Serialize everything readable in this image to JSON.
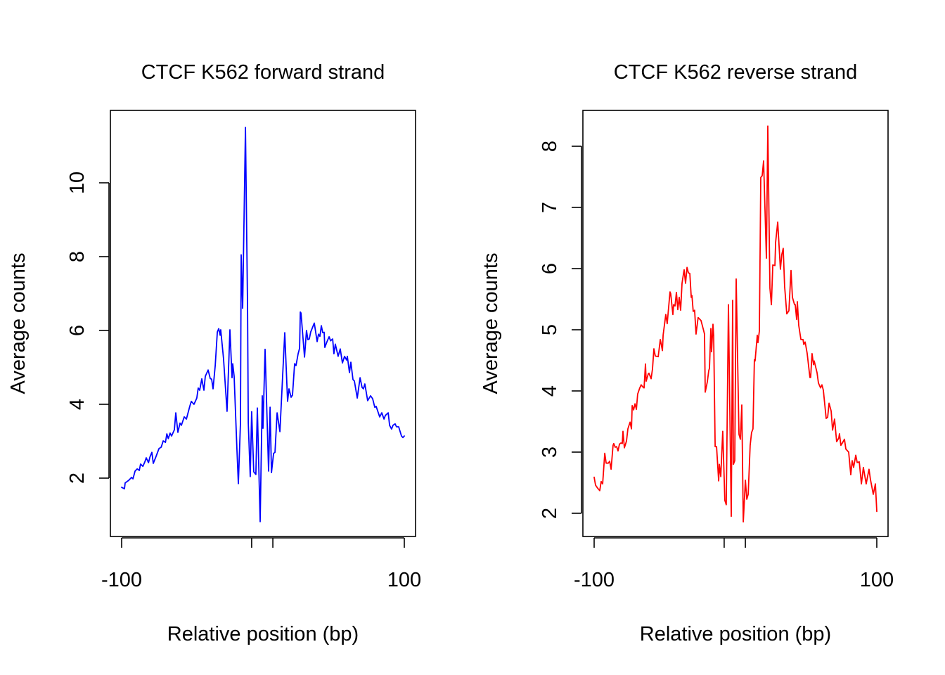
{
  "chart_data": [
    {
      "type": "line",
      "title": "CTCF K562 forward strand",
      "xlabel": "Relative position (bp)",
      "ylabel": "Average counts",
      "xlim": [
        -100,
        100
      ],
      "ylim": [
        0.8,
        11.5
      ],
      "x_ticks": [
        -100,
        -8,
        7,
        100
      ],
      "x_tick_labels": [
        "-100",
        "",
        "",
        "100"
      ],
      "y_ticks": [
        2,
        4,
        6,
        8,
        10
      ],
      "y_tick_labels": [
        "2",
        "4",
        "6",
        "8",
        "10"
      ],
      "grid": false,
      "legend": "none",
      "series": [
        {
          "name": "forward strand",
          "color": "#0000ff",
          "x": [
            -100,
            -98,
            -97.5,
            -95,
            -93,
            -92,
            -90.5,
            -89,
            -87.5,
            -86.6,
            -85,
            -83.6,
            -82.6,
            -81,
            -80,
            -78.6,
            -77.6,
            -75.6,
            -73.6,
            -72,
            -70.6,
            -69,
            -68,
            -67,
            -65.7,
            -64.7,
            -62.7,
            -61.7,
            -60.2,
            -58.7,
            -57.7,
            -55.7,
            -54.2,
            -51.7,
            -50.7,
            -48.8,
            -46.8,
            -45.8,
            -44.8,
            -43.3,
            -41.8,
            -40.8,
            -38.8,
            -37.3,
            -36.3,
            -35.3,
            -33.8,
            -32.3,
            -31.3,
            -30.3,
            -29.9,
            -27.9,
            -25.4,
            -23.4,
            -21.9,
            -21.4,
            -20.4,
            -18.4,
            -17.4,
            -15.9,
            -15.4,
            -14.4,
            -12.4,
            -10.9,
            -10.4,
            -9,
            -8,
            -6.5,
            -5,
            -4,
            -2,
            -0.5,
            0,
            1.5,
            3,
            4,
            5,
            6,
            7.5,
            8.5,
            10,
            12,
            15.4,
            17.4,
            18.4,
            19.9,
            20.9,
            22.4,
            23.4,
            24.9,
            25.9,
            26.4,
            26.9,
            29.4,
            30.8,
            31.8,
            32.8,
            33.8,
            36.3,
            38.3,
            39.3,
            40.3,
            41.3,
            42.3,
            43.3,
            43.8,
            45.3,
            46.8,
            47.8,
            49.3,
            50.2,
            51.2,
            53.2,
            54.7,
            56.2,
            57.7,
            59.2,
            59.7,
            61.2,
            62.2,
            63.7,
            64.7,
            66.7,
            68.7,
            70.1,
            71.1,
            72.1,
            74.1,
            76.1,
            77.6,
            79.1,
            80.1,
            82.6,
            84.1,
            85.6,
            86.6,
            88.6,
            89.6,
            91,
            92,
            93.5,
            94.5,
            96,
            98,
            99,
            100
          ],
          "y": [
            1.75,
            1.71,
            1.87,
            1.94,
            2.02,
            1.98,
            2.19,
            2.25,
            2.21,
            2.38,
            2.32,
            2.44,
            2.55,
            2.42,
            2.57,
            2.7,
            2.4,
            2.59,
            2.8,
            2.84,
            3.01,
            2.97,
            3.2,
            3.07,
            3.22,
            3.14,
            3.31,
            3.77,
            3.24,
            3.49,
            3.43,
            3.66,
            3.6,
            3.96,
            4.08,
            4.0,
            4.17,
            4.44,
            4.38,
            4.69,
            4.38,
            4.76,
            4.93,
            4.7,
            4.68,
            4.42,
            5.05,
            5.96,
            6.05,
            5.87,
            6.02,
            5.24,
            3.81,
            6.02,
            4.72,
            5.1,
            4.76,
            2.76,
            1.85,
            3.5,
            8.05,
            6.6,
            11.5,
            6.57,
            3.5,
            2.04,
            3.8,
            2.17,
            2.1,
            3.9,
            0.82,
            4.23,
            3.35,
            5.49,
            3.5,
            2.19,
            3.92,
            2.15,
            2.67,
            2.7,
            3.77,
            3.26,
            5.94,
            4.08,
            4.42,
            4.19,
            4.25,
            5.1,
            5.05,
            5.37,
            5.52,
            6.5,
            6.47,
            5.28,
            6.0,
            5.75,
            5.77,
            5.96,
            6.2,
            5.7,
            5.9,
            5.84,
            6.13,
            5.94,
            5.95,
            5.54,
            5.7,
            5.83,
            5.72,
            5.77,
            5.37,
            5.63,
            5.3,
            5.5,
            5.12,
            5.3,
            5.2,
            5.3,
            4.86,
            5.14,
            4.67,
            4.63,
            4.17,
            4.72,
            4.46,
            4.42,
            4.55,
            4.1,
            4.23,
            4.15,
            3.92,
            3.94,
            3.66,
            3.77,
            3.6,
            3.7,
            3.77,
            3.43,
            3.33,
            3.43,
            3.47,
            3.39,
            3.39,
            3.14,
            3.1,
            3.14
          ]
        }
      ]
    },
    {
      "type": "line",
      "title": "CTCF K562 reverse strand",
      "xlabel": "Relative position (bp)",
      "ylabel": "Average counts",
      "xlim": [
        -100,
        100
      ],
      "ylim": [
        1.85,
        8.35
      ],
      "x_ticks": [
        -100,
        -8,
        7,
        100
      ],
      "x_tick_labels": [
        "-100",
        "",
        "",
        "100"
      ],
      "y_ticks": [
        2,
        3,
        4,
        5,
        6,
        7,
        8
      ],
      "y_tick_labels": [
        "2",
        "3",
        "4",
        "5",
        "6",
        "7",
        "8"
      ],
      "grid": false,
      "legend": "none",
      "series": [
        {
          "name": "reverse strand",
          "color": "#ff0000",
          "x": [
            -100,
            -99,
            -97.5,
            -96,
            -95,
            -94,
            -92.5,
            -91.5,
            -90,
            -89,
            -88,
            -86.6,
            -86.1,
            -85.1,
            -84.1,
            -83.1,
            -82.1,
            -81.1,
            -80.1,
            -79.6,
            -78.6,
            -77.1,
            -76.1,
            -74.6,
            -73.6,
            -73.1,
            -72.1,
            -71.1,
            -70.1,
            -69.2,
            -67.7,
            -66.7,
            -65.7,
            -64.7,
            -63.7,
            -63.2,
            -61.7,
            -61.2,
            -59.7,
            -58.7,
            -57.7,
            -56.7,
            -54.7,
            -53.2,
            -51.7,
            -51.2,
            -49.3,
            -48.3,
            -46.3,
            -45.8,
            -44.3,
            -43.8,
            -42.8,
            -41.8,
            -40.8,
            -39.8,
            -38.8,
            -37.8,
            -36.8,
            -36.3,
            -35.3,
            -34.3,
            -33.3,
            -32.3,
            -31.3,
            -30.8,
            -29.9,
            -28.9,
            -27.9,
            -26.4,
            -24.4,
            -22.9,
            -21.9,
            -21.4,
            -19.9,
            -18.9,
            -18.4,
            -17.4,
            -16.9,
            -15.9,
            -15.4,
            -14.4,
            -13.4,
            -11.9,
            -11.4,
            -10.4,
            -9,
            -7.5,
            -6.5,
            -5,
            -3,
            -2,
            -1.5,
            -0.5,
            0.5,
            2.5,
            3.5,
            4.5,
            5.5,
            7,
            8,
            9,
            10.4,
            11.4,
            12.4,
            13.4,
            13.9,
            15.4,
            15.9,
            16.9,
            17.9,
            18.9,
            19.9,
            21.9,
            22.9,
            24.4,
            25.4,
            26.4,
            27.9,
            28.4,
            29.9,
            31.8,
            32.8,
            33.8,
            34.8,
            36.3,
            37.8,
            39.3,
            40.3,
            41.8,
            42.3,
            43.3,
            43.8,
            44.8,
            46.3,
            47.8,
            48.3,
            49.3,
            50.7,
            52.7,
            53.2,
            54.2,
            55.2,
            55.7,
            57.7,
            58.7,
            60.2,
            61.2,
            62.2,
            64.2,
            65.2,
            66.2,
            67.7,
            68.7,
            70.1,
            71.6,
            73.1,
            73.6,
            74.6,
            75.6,
            77.1,
            78.1,
            80.1,
            81.6,
            82.6,
            83.6,
            85.1,
            86.1,
            87.6,
            89.1,
            90.5,
            92.5,
            94.5,
            95.5,
            97.5,
            99,
            100
          ],
          "y": [
            2.59,
            2.46,
            2.41,
            2.37,
            2.52,
            2.48,
            2.98,
            2.82,
            2.82,
            2.85,
            2.72,
            3.11,
            3.14,
            3.08,
            3.09,
            3.02,
            3.13,
            3.15,
            3.14,
            3.34,
            3.07,
            3.18,
            3.38,
            3.49,
            3.38,
            3.76,
            3.69,
            3.79,
            3.7,
            3.95,
            4.05,
            4.1,
            4.07,
            4.05,
            4.44,
            4.16,
            4.28,
            4.29,
            4.2,
            4.36,
            4.69,
            4.57,
            4.56,
            4.84,
            4.66,
            4.91,
            5.25,
            5.1,
            5.62,
            5.59,
            5.25,
            5.41,
            5.39,
            5.61,
            5.33,
            5.53,
            5.32,
            5.76,
            5.91,
            5.98,
            5.76,
            6.02,
            5.93,
            5.92,
            5.53,
            5.56,
            5.3,
            5.32,
            4.93,
            5.2,
            5.15,
            5.02,
            4.93,
            3.98,
            4.15,
            4.33,
            4.37,
            5.02,
            4.64,
            5.09,
            4.9,
            3.09,
            3.09,
            2.53,
            2.8,
            2.6,
            3.34,
            2.21,
            2.14,
            5.41,
            1.95,
            5.48,
            2.8,
            2.86,
            5.83,
            3.29,
            3.21,
            3.77,
            1.86,
            2.54,
            2.23,
            2.31,
            3.11,
            3.32,
            3.38,
            4.51,
            4.49,
            4.91,
            4.79,
            4.98,
            7.49,
            7.52,
            7.76,
            6.17,
            8.33,
            5.68,
            5.41,
            6.06,
            6.05,
            6.43,
            6.76,
            5.99,
            6.23,
            6.33,
            5.71,
            5.26,
            5.31,
            5.97,
            5.53,
            5.41,
            5.41,
            5.17,
            5.46,
            5.07,
            4.84,
            4.84,
            4.76,
            4.8,
            4.62,
            4.22,
            4.22,
            4.61,
            4.43,
            4.49,
            4.3,
            4.13,
            4.05,
            4.1,
            4.01,
            3.55,
            3.57,
            3.8,
            3.67,
            3.36,
            3.54,
            3.17,
            3.23,
            3.3,
            3.11,
            3.15,
            3.21,
            3.05,
            3.0,
            2.63,
            2.86,
            2.75,
            2.95,
            2.83,
            2.84,
            2.48,
            2.75,
            2.48,
            2.72,
            2.55,
            2.31,
            2.48,
            2.03
          ]
        }
      ]
    }
  ]
}
